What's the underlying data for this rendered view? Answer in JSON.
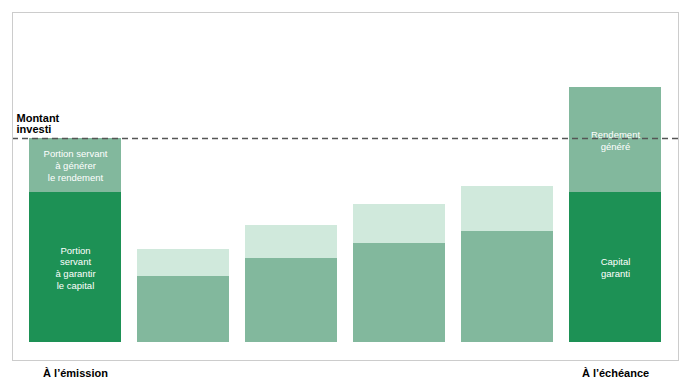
{
  "chart_data": {
    "type": "bar",
    "stacked": true,
    "categories": [
      "À l’émission",
      null,
      null,
      null,
      null,
      "À l’échéance"
    ],
    "series": [
      {
        "values": [
          5.0,
          2.2,
          2.8,
          3.3,
          3.7,
          5.0
        ],
        "colors": [
          "#1d9155",
          "#82b89d",
          "#82b89d",
          "#82b89d",
          "#82b89d",
          "#1d9155"
        ],
        "segment_labels": [
          "Portion\nservant\nà garantir\nle capital",
          null,
          null,
          null,
          null,
          "Capital\ngaranti"
        ]
      },
      {
        "values": [
          1.8,
          0.9,
          1.1,
          1.3,
          1.5,
          3.5
        ],
        "colors": [
          "#82b89d",
          "#d0e9dc",
          "#d0e9dc",
          "#d0e9dc",
          "#d0e9dc",
          "#82b89d"
        ],
        "segment_labels": [
          "Portion servant\nà générer\nle rendement",
          null,
          null,
          null,
          null,
          "Rendement\ngénéré"
        ]
      }
    ],
    "reference_lines": [
      {
        "y": 6.8,
        "label": "Montant\ninvesti",
        "line_style": "dashed"
      }
    ],
    "ylim": [
      -0.6,
      11.0
    ],
    "tick_labels": "x",
    "grid": false
  }
}
